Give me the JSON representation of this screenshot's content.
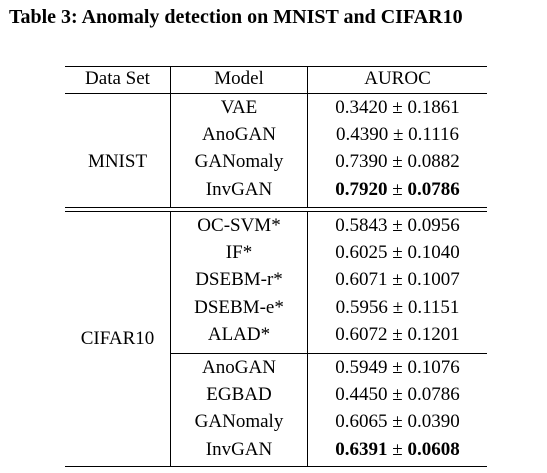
{
  "caption": "Table 3: Anomaly detection on MNIST and CIFAR10",
  "header": {
    "dataset": "Data Set",
    "model": "Model",
    "auroc": "AUROC"
  },
  "groups": [
    {
      "dataset": "MNIST",
      "rows": [
        {
          "model": "VAE",
          "mean": "0.3420",
          "pm": "±",
          "std": "0.1861",
          "bold": false
        },
        {
          "model": "AnoGAN",
          "mean": "0.4390",
          "pm": "±",
          "std": "0.1116",
          "bold": false
        },
        {
          "model": "GANomaly",
          "mean": "0.7390",
          "pm": "±",
          "std": "0.0882",
          "bold": false
        },
        {
          "model": "InvGAN",
          "mean": "0.7920",
          "pm": "±",
          "std": "0.0786",
          "bold": true
        }
      ]
    },
    {
      "dataset": "CIFAR10",
      "rows": [
        {
          "model": "OC-SVM*",
          "mean": "0.5843",
          "pm": "±",
          "std": "0.0956",
          "bold": false
        },
        {
          "model": "IF*",
          "mean": "0.6025",
          "pm": "±",
          "std": "0.1040",
          "bold": false
        },
        {
          "model": "DSEBM-r*",
          "mean": "0.6071",
          "pm": "±",
          "std": "0.1007",
          "bold": false
        },
        {
          "model": "DSEBM-e*",
          "mean": "0.5956",
          "pm": "±",
          "std": "0.1151",
          "bold": false
        },
        {
          "model": "ALAD*",
          "mean": "0.6072",
          "pm": "±",
          "std": "0.1201",
          "bold": false
        },
        {
          "model": "AnoGAN",
          "mean": "0.5949",
          "pm": "±",
          "std": "0.1076",
          "bold": false
        },
        {
          "model": "EGBAD",
          "mean": "0.4450",
          "pm": "±",
          "std": "0.0786",
          "bold": false
        },
        {
          "model": "GANomaly",
          "mean": "0.6065",
          "pm": "±",
          "std": "0.0390",
          "bold": false
        },
        {
          "model": "InvGAN",
          "mean": "0.6391",
          "pm": "±",
          "std": "0.0608",
          "bold": true
        }
      ]
    }
  ]
}
